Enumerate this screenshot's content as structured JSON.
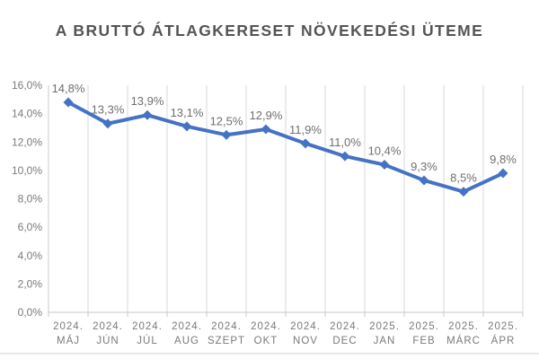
{
  "page": {
    "title": "A BRUTTÓ ÁTLAGKERESET NÖVEKEDÉSI ÜTEME"
  },
  "chart_data": {
    "type": "line",
    "title": "A BRUTTÓ ÁTLAGKERESET NÖVEKEDÉSI ÜTEME",
    "categories": [
      {
        "year": "2024.",
        "month": "MÁJ"
      },
      {
        "year": "2024.",
        "month": "JÚN"
      },
      {
        "year": "2024.",
        "month": "JÚL"
      },
      {
        "year": "2024.",
        "month": "AUG"
      },
      {
        "year": "2024.",
        "month": "SZEPT"
      },
      {
        "year": "2024.",
        "month": "OKT"
      },
      {
        "year": "2024.",
        "month": "NOV"
      },
      {
        "year": "2024.",
        "month": "DEC"
      },
      {
        "year": "2025.",
        "month": "JAN"
      },
      {
        "year": "2025.",
        "month": "FEB"
      },
      {
        "year": "2025.",
        "month": "MÁRC"
      },
      {
        "year": "2025.",
        "month": "ÁPR"
      }
    ],
    "values": [
      14.8,
      13.3,
      13.9,
      13.1,
      12.5,
      12.9,
      11.9,
      11.0,
      10.4,
      9.3,
      8.5,
      9.8
    ],
    "data_labels": [
      "14,8%",
      "13,3%",
      "13,9%",
      "13,1%",
      "12,5%",
      "12,9%",
      "11,9%",
      "11,0%",
      "10,4%",
      "9,3%",
      "8,5%",
      "9,8%"
    ],
    "y_ticks": [
      "16,0%",
      "14,0%",
      "12,0%",
      "10,0%",
      "8,0%",
      "6,0%",
      "4,0%",
      "2,0%",
      "0,0%"
    ],
    "ylim": [
      0,
      16
    ],
    "y_tick_step": 2,
    "xlabel": "",
    "ylabel": "",
    "grid": "vertical-only",
    "legend": "none",
    "colors": {
      "series": "#4472C4",
      "gridline": "#d9d9d9",
      "axis": "#c8c8c8",
      "title_text": "#545454",
      "tick_text": "#7a7a7a",
      "data_label_text": "#6f6f6f"
    }
  }
}
